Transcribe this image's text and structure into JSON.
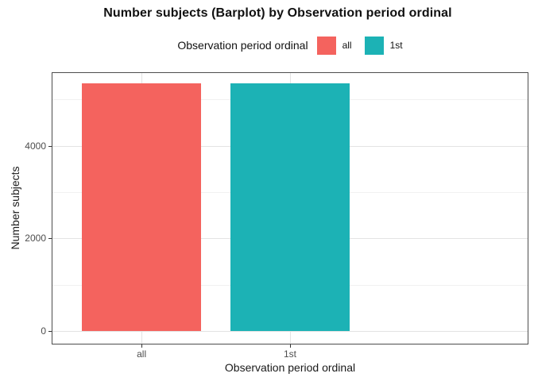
{
  "title": "Number subjects (Barplot) by Observation period ordinal",
  "legend": {
    "title": "Observation period ordinal",
    "entries": [
      {
        "label": "all",
        "color": "#F4635E"
      },
      {
        "label": "1st",
        "color": "#1CB2B5"
      }
    ]
  },
  "chart_data": {
    "type": "bar",
    "title": "Number subjects (Barplot) by Observation period ordinal",
    "xlabel": "Observation period ordinal",
    "ylabel": "Number subjects",
    "categories": [
      "all",
      "1st"
    ],
    "values": [
      5350,
      5350
    ],
    "colors": [
      "#F4635E",
      "#1CB2B5"
    ],
    "y_major_ticks": [
      0,
      2000,
      4000
    ],
    "y_minor_ticks": [
      1000,
      3000,
      5000
    ],
    "ylim": [
      -270,
      5570
    ],
    "grid": true,
    "legend_position": "top",
    "legend_title": "Observation period ordinal",
    "bar_width_fraction": 0.364,
    "panel_border_color": "#4d4d4d",
    "grid_major_color": "#e3e3e3",
    "grid_minor_color": "#f1f1f1"
  }
}
